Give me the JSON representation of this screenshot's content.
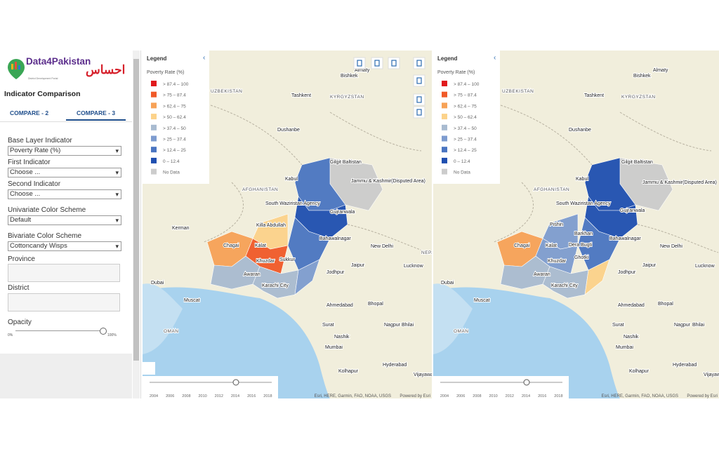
{
  "sidebar": {
    "logo_title": "Data4Pakistan",
    "logo_subtitle": "District Development Portal",
    "logo_partner": "احساس",
    "heading": "Indicator Comparison",
    "tabs": [
      "COMPARE - 2",
      "COMPARE - 3"
    ],
    "fields": [
      {
        "label": "Base Layer Indicator",
        "value": "Poverty Rate (%)"
      },
      {
        "label": "First Indicator",
        "value": "Choose ..."
      },
      {
        "label": "Second Indicator",
        "value": "Choose ..."
      },
      {
        "label": "Univariate Color Scheme",
        "value": "Default"
      },
      {
        "label": "Bivariate Color Scheme",
        "value": "Cottoncandy Wisps"
      }
    ],
    "province_label": "Province",
    "district_label": "District",
    "opacity_label": "Opacity",
    "opacity_min": "0%",
    "opacity_max": "100%"
  },
  "maps": [
    {
      "legend_title": "Legend",
      "legend_subtitle": "Poverty Rate (%)",
      "legend_items": [
        {
          "label": "> 87.4 – 100",
          "color": "#e0191c"
        },
        {
          "label": "> 75 – 87.4",
          "color": "#f05a28"
        },
        {
          "label": "> 62.4 – 75",
          "color": "#f7a257"
        },
        {
          "label": "> 50 – 62.4",
          "color": "#fcd28a"
        },
        {
          "label": "> 37.4 – 50",
          "color": "#a9bbd0"
        },
        {
          "label": "> 25 – 37.4",
          "color": "#7e9ccf"
        },
        {
          "label": "> 12.4 – 25",
          "color": "#4a75c1"
        },
        {
          "label": "0 – 12.4",
          "color": "#1f4fb0"
        },
        {
          "label": "No Data",
          "color": "#cccccc"
        }
      ],
      "labels": [
        "Almaty",
        "Bishkek",
        "Tashkent",
        "KYRGYZSTAN",
        "UZBEKISTAN",
        "Dushanbe",
        "Gilgit Baltistan",
        "Jammu & Kashmir(Disputed Area)",
        "AFGHANISTAN",
        "Kabul",
        "South Waziristan Agency",
        "Gujranwala",
        "Killa Abdullah",
        "Kerman",
        "Chagai",
        "Kalat",
        "Bahawalnagar",
        "New Delhi",
        "NEPAL",
        "Khuzdar",
        "Sukkur",
        "Jaipur",
        "Lucknow",
        "Jodhpur",
        "Awaran",
        "Dubai",
        "Karachi City",
        "Muscat",
        "Ahmedabad",
        "Bhopal",
        "OMAN",
        "Surat",
        "Nagpur",
        "Bhilai",
        "Nashik",
        "Mumbai",
        "Hyderabad",
        "Kolhapur",
        "Vijayawada"
      ],
      "timeline": [
        "2004",
        "2006",
        "2008",
        "2010",
        "2012",
        "2014",
        "2016",
        "2018"
      ],
      "attribution": "Esri, HERE, Garmin, FAO, NOAA, USGS",
      "powered": "Powered by Esri"
    },
    {
      "legend_title": "Legend",
      "legend_subtitle": "Poverty Rate (%)",
      "legend_items": [
        {
          "label": "> 87.4 – 100",
          "color": "#e0191c"
        },
        {
          "label": "> 75 – 87.4",
          "color": "#f05a28"
        },
        {
          "label": "> 62.4 – 75",
          "color": "#f7a257"
        },
        {
          "label": "> 50 – 62.4",
          "color": "#fcd28a"
        },
        {
          "label": "> 37.4 – 50",
          "color": "#a9bbd0"
        },
        {
          "label": "> 25 – 37.4",
          "color": "#7e9ccf"
        },
        {
          "label": "> 12.4 – 25",
          "color": "#4a75c1"
        },
        {
          "label": "0 – 12.4",
          "color": "#1f4fb0"
        },
        {
          "label": "No Data",
          "color": "#cccccc"
        }
      ],
      "labels": [
        "Almaty",
        "Bishkek",
        "Tashkent",
        "KYRGYZSTAN",
        "UZBEKISTAN",
        "Dushanbe",
        "Gilgit Baltistan",
        "Jammu & Kashmir(Disputed Area)",
        "AFGHANISTAN",
        "Kabul",
        "South Waziristan Agency",
        "Gujranwala",
        "Pishin",
        "Barkhan",
        "Chagai",
        "Kalat",
        "Dera Bugti",
        "Bahawalnagar",
        "New Delhi",
        "Khuzdar",
        "Ghotki",
        "Jaipur",
        "Lucknow",
        "Jodhpur",
        "Awaran",
        "Dubai",
        "Karachi City",
        "Muscat",
        "Ahmedabad",
        "Bhopal",
        "OMAN",
        "Surat",
        "Nagpur",
        "Bhilai",
        "Nashik",
        "Mumbai",
        "Hyderabad",
        "Kolhapur",
        "Vijayawada"
      ],
      "timeline": [
        "2004",
        "2006",
        "2008",
        "2010",
        "2012",
        "2014",
        "2016",
        "2018"
      ],
      "attribution": "Esri, HERE, Garmin, FAO, NOAA, USGS",
      "powered": "Powered by Esri"
    }
  ]
}
